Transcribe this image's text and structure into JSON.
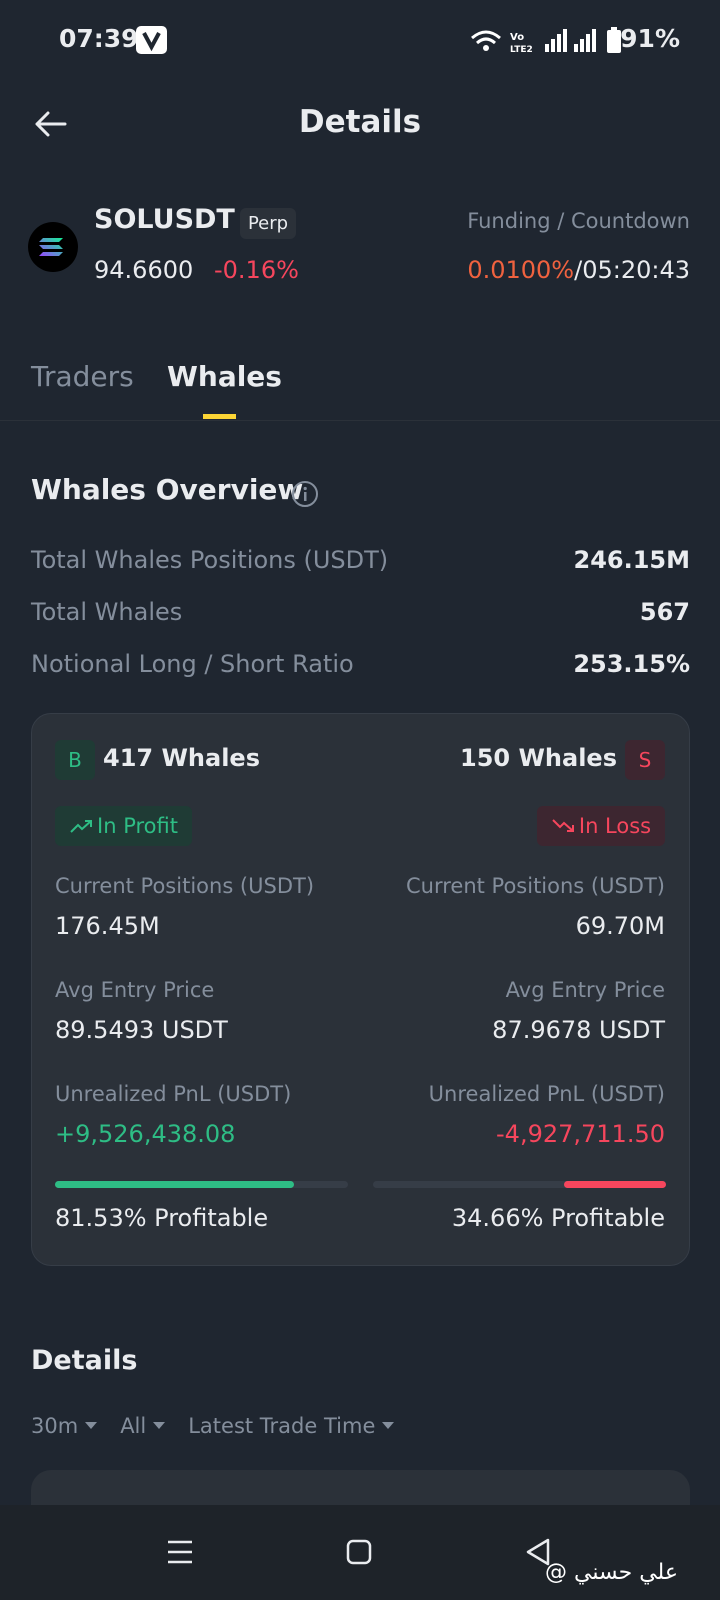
{
  "status_bar": {
    "time": "07:39",
    "battery": "91%"
  },
  "header": {
    "title": "Details"
  },
  "instrument": {
    "symbol": "SOLUSDT",
    "badge": "Perp",
    "price": "94.6600",
    "change": "-0.16%",
    "funding_label": "Funding / Countdown",
    "funding_rate": "0.0100%",
    "separator": "/",
    "countdown": "05:20:43"
  },
  "tabs": [
    "Traders",
    "Whales"
  ],
  "overview": {
    "title": "Whales Overview",
    "rows": [
      [
        "Total Whales Positions (USDT)",
        "246.15M"
      ],
      [
        "Total Whales",
        "567"
      ],
      [
        "Notional Long / Short Ratio",
        "253.15%"
      ]
    ]
  },
  "long": {
    "badge": "B",
    "count": "417 Whales",
    "status": "In Profit",
    "positions_label": "Current Positions (USDT)",
    "positions": "176.45M",
    "entry_label": "Avg Entry Price",
    "entry": "89.5493 USDT",
    "pnl_label": "Unrealized PnL (USDT)",
    "pnl": "+9,526,438.08",
    "profitable": {
      "value": 81.53,
      "label": "81.53% Profitable"
    }
  },
  "short": {
    "badge": "S",
    "count": "150 Whales",
    "status": "In Loss",
    "positions_label": "Current Positions (USDT)",
    "positions": "69.70M",
    "entry_label": "Avg Entry Price",
    "entry": "87.9678 USDT",
    "pnl_label": "Unrealized PnL (USDT)",
    "pnl": "-4,927,711.50",
    "profitable": {
      "value": 34.66,
      "label": "34.66% Profitable"
    }
  },
  "details": {
    "title": "Details",
    "filters": [
      "30m",
      "All",
      "Latest Trade Time"
    ]
  },
  "watermark": "@ علي حسني"
}
